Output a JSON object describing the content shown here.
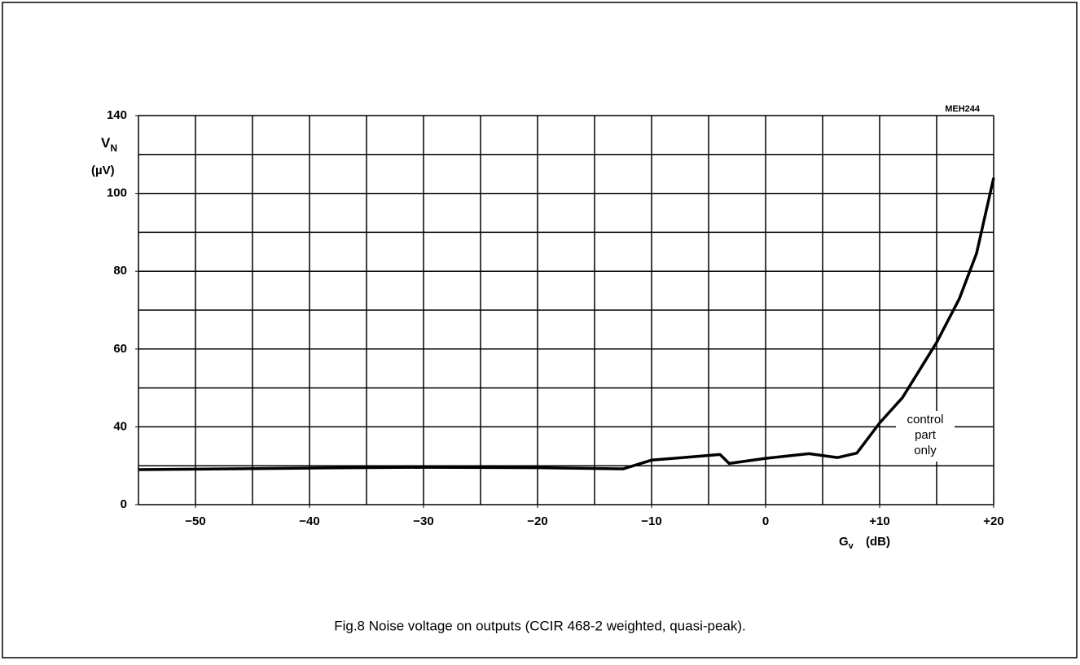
{
  "chart_data": {
    "type": "line",
    "code": "MEH244",
    "caption": "Fig.8  Noise voltage on outputs (CCIR 468-2 weighted, quasi-peak).",
    "ylabel": "V",
    "ylabel_sub": "N",
    "yunit": "(µV)",
    "xlabel": "G",
    "xlabel_sub": "v",
    "xunit": "(dB)",
    "annotation": [
      "control",
      "part",
      "only"
    ],
    "xlim": [
      -55,
      20
    ],
    "xticks": [
      {
        "value": -50,
        "label": "−50"
      },
      {
        "value": -40,
        "label": "−40"
      },
      {
        "value": -30,
        "label": "−30"
      },
      {
        "value": -20,
        "label": "−20"
      },
      {
        "value": -10,
        "label": "−10"
      },
      0,
      {
        "value": 10,
        "label": "+10"
      },
      {
        "value": 20,
        "label": "+20"
      }
    ],
    "x_gridlines": [
      -55,
      -50,
      -45,
      -40,
      -35,
      -30,
      -25,
      -20,
      -15,
      -10,
      -5,
      0,
      5,
      10,
      15,
      20
    ],
    "ylim": [
      0,
      140
    ],
    "yticks": [
      0,
      40,
      60,
      80,
      100,
      140
    ],
    "y_gridlines": [
      0,
      20,
      40,
      50,
      60,
      70,
      80,
      90,
      100,
      120,
      140
    ],
    "y_scale": "gridlines-evenly-spaced",
    "color": "#000000",
    "x": [
      -55,
      -40,
      -30,
      -20,
      -12.5,
      -10,
      -7,
      -4,
      -3.2,
      0,
      3.8,
      6.3,
      8,
      10,
      12,
      15,
      17,
      18.5,
      20
    ],
    "values": [
      18,
      18.8,
      19.2,
      19,
      18.4,
      22.9,
      24.3,
      25.8,
      21.2,
      23.8,
      26.2,
      24.2,
      26.5,
      41,
      47.5,
      61.7,
      73,
      84.6,
      108
    ]
  }
}
